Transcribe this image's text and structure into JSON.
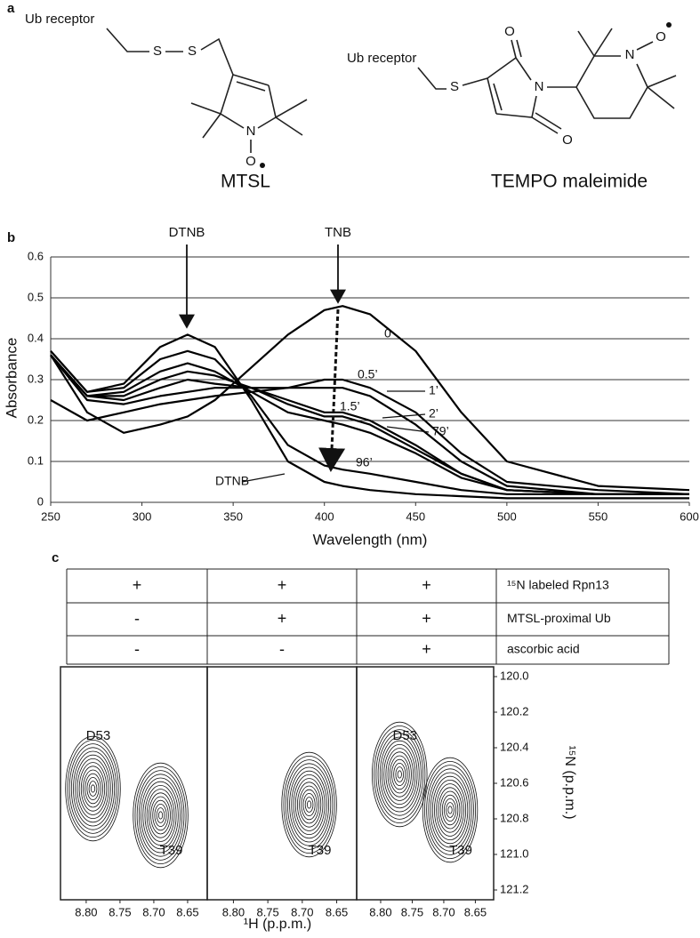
{
  "panel_labels": [
    "a",
    "b",
    "c"
  ],
  "structures": [
    {
      "name": "MTSL",
      "receptor": "Ub receptor",
      "atoms": [
        "S",
        "S",
        "N",
        "O"
      ]
    },
    {
      "name": "TEMPO maleimide",
      "receptor": "Ub receptor",
      "atoms": [
        "S",
        "O",
        "N",
        "O",
        "N",
        "O"
      ]
    }
  ],
  "chart_data": {
    "type": "line",
    "xlabel": "Wavelength (nm)",
    "ylabel": "Absorbance",
    "annotations": [
      "DTNB",
      "TNB"
    ],
    "grid": true,
    "x": [
      250,
      270,
      290,
      310,
      325,
      340,
      360,
      380,
      400,
      410,
      425,
      450,
      475,
      500,
      550,
      600
    ],
    "xlim": [
      250,
      600
    ],
    "ylim": [
      0,
      0.6
    ],
    "xticks": [
      250,
      300,
      350,
      400,
      450,
      500,
      550,
      600
    ],
    "yticks": [
      0,
      0.1,
      0.2,
      0.3,
      0.4,
      0.5,
      0.6
    ],
    "series": [
      {
        "name": "0",
        "color": "#000",
        "values": [
          0.36,
          0.22,
          0.17,
          0.19,
          0.21,
          0.25,
          0.33,
          0.41,
          0.47,
          0.48,
          0.46,
          0.37,
          0.22,
          0.1,
          0.04,
          0.03
        ]
      },
      {
        "name": "0.5’",
        "color": "#000",
        "values": [
          0.25,
          0.2,
          0.22,
          0.24,
          0.25,
          0.26,
          0.27,
          0.28,
          0.3,
          0.3,
          0.28,
          0.22,
          0.12,
          0.05,
          0.03,
          0.02
        ]
      },
      {
        "name": "1’",
        "color": "#000",
        "values": [
          0.36,
          0.25,
          0.24,
          0.26,
          0.27,
          0.28,
          0.28,
          0.28,
          0.28,
          0.28,
          0.26,
          0.19,
          0.1,
          0.04,
          0.02,
          0.02
        ]
      },
      {
        "name": "1.5’",
        "color": "#000",
        "values": [
          0.36,
          0.26,
          0.25,
          0.28,
          0.3,
          0.29,
          0.28,
          0.25,
          0.22,
          0.22,
          0.2,
          0.14,
          0.07,
          0.03,
          0.02,
          0.02
        ]
      },
      {
        "name": "2’",
        "color": "#000",
        "values": [
          0.36,
          0.26,
          0.26,
          0.3,
          0.32,
          0.31,
          0.28,
          0.24,
          0.21,
          0.21,
          0.19,
          0.13,
          0.07,
          0.03,
          0.02,
          0.02
        ]
      },
      {
        "name": "79’",
        "color": "#000",
        "values": [
          0.36,
          0.26,
          0.27,
          0.32,
          0.34,
          0.32,
          0.27,
          0.22,
          0.2,
          0.19,
          0.17,
          0.12,
          0.06,
          0.03,
          0.02,
          0.02
        ]
      },
      {
        "name": "96’",
        "color": "#000",
        "values": [
          0.37,
          0.27,
          0.28,
          0.35,
          0.37,
          0.35,
          0.26,
          0.14,
          0.09,
          0.08,
          0.07,
          0.05,
          0.03,
          0.02,
          0.02,
          0.02
        ]
      },
      {
        "name": "DTNB",
        "color": "#000",
        "values": [
          0.37,
          0.27,
          0.29,
          0.38,
          0.41,
          0.38,
          0.25,
          0.1,
          0.05,
          0.04,
          0.03,
          0.02,
          0.015,
          0.01,
          0.01,
          0.01
        ]
      }
    ]
  },
  "table": {
    "rows": [
      [
        "+",
        "+",
        "+",
        "¹⁵N labeled Rpn13"
      ],
      [
        "-",
        "+",
        "+",
        "MTSL-proximal Ub"
      ],
      [
        "-",
        "-",
        "+",
        "ascorbic acid"
      ]
    ]
  },
  "nmr": {
    "xlabel": "¹H (p.p.m.)",
    "ylabel": "¹⁵N (p.p.m.)",
    "xlim": [
      8.838,
      8.621
    ],
    "ylim": [
      119.945,
      121.255
    ],
    "xticks": [
      {
        "value": 8.8,
        "label": "8.80"
      },
      8.75,
      {
        "value": 8.7,
        "label": "8.70"
      },
      8.65
    ],
    "yticks": [
      {
        "value": 120,
        "label": "120.0"
      },
      120.2,
      120.4,
      120.6,
      120.8,
      {
        "value": 121,
        "label": "121.0"
      },
      121.2
    ],
    "spectra": [
      {
        "peaks": [
          {
            "label": "D53",
            "h": 8.79,
            "n": 120.63
          },
          {
            "label": "T39",
            "h": 8.69,
            "n": 120.78
          }
        ]
      },
      {
        "peaks": [
          {
            "label": "T39",
            "h": 8.69,
            "n": 120.72
          }
        ]
      },
      {
        "peaks": [
          {
            "label": "D53",
            "h": 8.77,
            "n": 120.55
          },
          {
            "label": "T39",
            "h": 8.69,
            "n": 120.75
          }
        ]
      }
    ]
  }
}
